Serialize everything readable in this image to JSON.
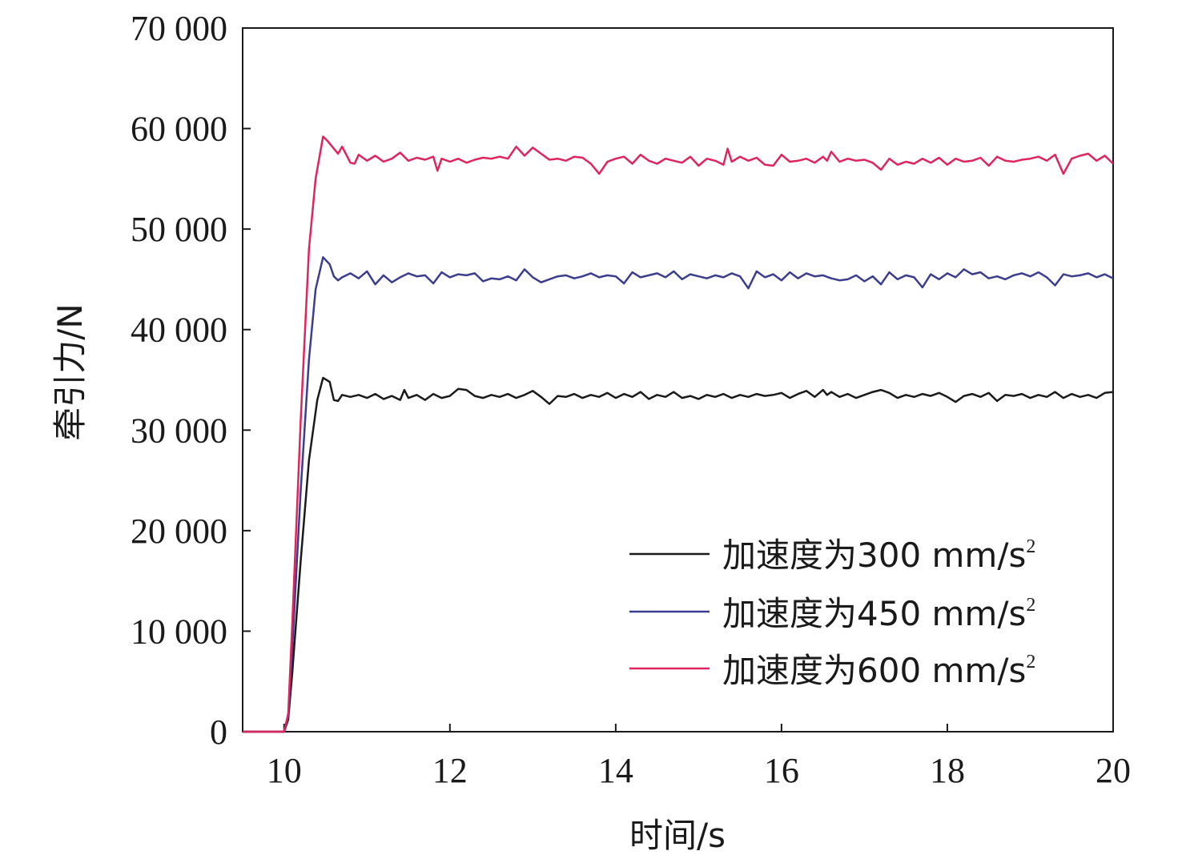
{
  "chart_data": {
    "type": "line",
    "xlabel": "时间/s",
    "ylabel": "牵引力/N",
    "xlim": [
      9.5,
      20
    ],
    "ylim": [
      0,
      70000
    ],
    "xticks": [
      10,
      12,
      14,
      16,
      18,
      20
    ],
    "yticks": [
      0,
      10000,
      20000,
      30000,
      40000,
      50000,
      60000,
      70000
    ],
    "xtick_labels": [
      "10",
      "12",
      "14",
      "16",
      "18",
      "20"
    ],
    "ytick_labels": [
      "0",
      "10 000",
      "20 000",
      "30 000",
      "40 000",
      "50 000",
      "60 000",
      "70 000"
    ],
    "grid": false,
    "legend_position": "bottom-right",
    "series": [
      {
        "name": "加速度为300 mm/s",
        "name_sup": "2",
        "color": "#1a1a1a",
        "x": [
          9.5,
          10.0,
          10.05,
          10.1,
          10.2,
          10.3,
          10.4,
          10.47,
          10.55,
          10.6,
          10.65,
          10.7,
          10.8,
          10.9,
          11.0,
          11.1,
          11.2,
          11.3,
          11.4,
          11.45,
          11.5,
          11.6,
          11.7,
          11.8,
          11.9,
          12.0,
          12.1,
          12.2,
          12.3,
          12.4,
          12.5,
          12.6,
          12.7,
          12.8,
          12.9,
          13.0,
          13.1,
          13.2,
          13.3,
          13.4,
          13.5,
          13.6,
          13.7,
          13.8,
          13.9,
          14.0,
          14.1,
          14.2,
          14.3,
          14.4,
          14.5,
          14.6,
          14.7,
          14.8,
          14.9,
          15.0,
          15.1,
          15.2,
          15.3,
          15.4,
          15.5,
          15.6,
          15.7,
          15.8,
          15.9,
          16.0,
          16.1,
          16.2,
          16.3,
          16.4,
          16.5,
          16.55,
          16.6,
          16.7,
          16.8,
          16.9,
          17.0,
          17.1,
          17.2,
          17.3,
          17.4,
          17.5,
          17.6,
          17.7,
          17.8,
          17.9,
          18.0,
          18.1,
          18.2,
          18.3,
          18.4,
          18.5,
          18.6,
          18.7,
          18.8,
          18.9,
          19.0,
          19.1,
          19.2,
          19.3,
          19.4,
          19.5,
          19.6,
          19.7,
          19.8,
          19.9,
          20.0
        ],
        "y": [
          0,
          0,
          1200,
          6000,
          17000,
          27000,
          33000,
          35200,
          34800,
          33000,
          32900,
          33500,
          33300,
          33500,
          33200,
          33600,
          33100,
          33400,
          33000,
          34000,
          33200,
          33500,
          33000,
          33600,
          33200,
          33400,
          34100,
          34000,
          33400,
          33200,
          33500,
          33300,
          33600,
          33200,
          33500,
          33900,
          33300,
          32600,
          33400,
          33300,
          33600,
          33200,
          33500,
          33300,
          33700,
          33200,
          33600,
          33300,
          33800,
          33100,
          33500,
          33300,
          33800,
          33200,
          33400,
          33100,
          33500,
          33300,
          33600,
          33200,
          33500,
          33300,
          33600,
          33400,
          33500,
          33700,
          33200,
          33600,
          33900,
          33300,
          34000,
          33500,
          33800,
          33300,
          33600,
          33200,
          33500,
          33800,
          34000,
          33700,
          33200,
          33500,
          33300,
          33600,
          33400,
          33700,
          33300,
          32800,
          33400,
          33600,
          33300,
          33700,
          32900,
          33500,
          33400,
          33600,
          33200,
          33500,
          33300,
          33800,
          33200,
          33600,
          33300,
          33500,
          33200,
          33700,
          33800
        ]
      },
      {
        "name": "加速度为450 mm/s",
        "name_sup": "2",
        "color": "#3b3d8f",
        "x": [
          9.5,
          10.0,
          10.05,
          10.1,
          10.2,
          10.3,
          10.38,
          10.47,
          10.55,
          10.6,
          10.65,
          10.7,
          10.8,
          10.9,
          11.0,
          11.1,
          11.2,
          11.3,
          11.4,
          11.5,
          11.6,
          11.7,
          11.8,
          11.9,
          12.0,
          12.1,
          12.2,
          12.3,
          12.4,
          12.5,
          12.6,
          12.7,
          12.8,
          12.9,
          13.0,
          13.1,
          13.2,
          13.3,
          13.4,
          13.5,
          13.6,
          13.7,
          13.8,
          13.9,
          14.0,
          14.1,
          14.2,
          14.3,
          14.4,
          14.5,
          14.6,
          14.7,
          14.8,
          14.9,
          15.0,
          15.1,
          15.2,
          15.3,
          15.4,
          15.5,
          15.6,
          15.7,
          15.8,
          15.9,
          16.0,
          16.1,
          16.2,
          16.3,
          16.4,
          16.5,
          16.6,
          16.7,
          16.8,
          16.9,
          17.0,
          17.1,
          17.2,
          17.3,
          17.4,
          17.5,
          17.6,
          17.7,
          17.8,
          17.9,
          18.0,
          18.1,
          18.2,
          18.3,
          18.4,
          18.5,
          18.6,
          18.7,
          18.8,
          18.9,
          19.0,
          19.1,
          19.2,
          19.3,
          19.4,
          19.5,
          19.6,
          19.7,
          19.8,
          19.9,
          20.0
        ],
        "y": [
          0,
          0,
          1500,
          8500,
          24000,
          37000,
          44000,
          47200,
          46500,
          45300,
          44900,
          45200,
          45600,
          45100,
          45800,
          44500,
          45400,
          44700,
          45200,
          45600,
          45300,
          45400,
          44600,
          45700,
          45200,
          45500,
          45400,
          45600,
          44800,
          45100,
          45000,
          45300,
          44900,
          46000,
          45200,
          44700,
          45000,
          45300,
          45400,
          45100,
          45300,
          45600,
          45200,
          45400,
          45300,
          44600,
          45700,
          45200,
          45400,
          45600,
          45200,
          45800,
          45000,
          45500,
          45300,
          45100,
          45400,
          45200,
          45600,
          45300,
          44100,
          45800,
          45200,
          45500,
          44900,
          45700,
          45100,
          45600,
          45300,
          45400,
          45100,
          44900,
          45000,
          45400,
          44800,
          45300,
          44500,
          45700,
          45000,
          45400,
          45200,
          44200,
          45500,
          45000,
          45600,
          45200,
          46000,
          45500,
          45700,
          45100,
          45300,
          45000,
          45400,
          45600,
          45300,
          45700,
          45200,
          44400,
          45500,
          45300,
          45400,
          45600,
          45200,
          45500,
          45100
        ]
      },
      {
        "name": "加速度为600 mm/s",
        "name_sup": "2",
        "color": "#e0245e",
        "x": [
          9.5,
          10.0,
          10.05,
          10.1,
          10.2,
          10.3,
          10.38,
          10.47,
          10.52,
          10.6,
          10.65,
          10.7,
          10.8,
          10.85,
          10.9,
          11.0,
          11.1,
          11.2,
          11.3,
          11.4,
          11.5,
          11.6,
          11.7,
          11.8,
          11.85,
          11.9,
          12.0,
          12.1,
          12.2,
          12.3,
          12.4,
          12.5,
          12.6,
          12.7,
          12.8,
          12.9,
          13.0,
          13.1,
          13.2,
          13.3,
          13.4,
          13.5,
          13.6,
          13.7,
          13.8,
          13.9,
          14.0,
          14.1,
          14.2,
          14.3,
          14.4,
          14.5,
          14.6,
          14.7,
          14.8,
          14.9,
          15.0,
          15.1,
          15.2,
          15.3,
          15.35,
          15.4,
          15.5,
          15.6,
          15.7,
          15.8,
          15.9,
          16.0,
          16.1,
          16.2,
          16.3,
          16.4,
          16.5,
          16.55,
          16.6,
          16.7,
          16.8,
          16.9,
          17.0,
          17.1,
          17.2,
          17.3,
          17.4,
          17.5,
          17.6,
          17.7,
          17.8,
          17.9,
          18.0,
          18.1,
          18.2,
          18.3,
          18.4,
          18.5,
          18.6,
          18.7,
          18.8,
          18.9,
          19.0,
          19.1,
          19.2,
          19.3,
          19.4,
          19.5,
          19.6,
          19.7,
          19.8,
          19.9,
          20.0
        ],
        "y": [
          0,
          0,
          1800,
          11000,
          31000,
          48000,
          55000,
          59200,
          58800,
          58000,
          57500,
          58200,
          56600,
          56500,
          57400,
          56800,
          57300,
          56700,
          57000,
          57600,
          56800,
          57100,
          56900,
          57200,
          55800,
          57000,
          56700,
          57000,
          56600,
          56900,
          57100,
          57000,
          57200,
          57000,
          58200,
          57300,
          58100,
          57500,
          56900,
          57000,
          56800,
          57200,
          57100,
          56500,
          55500,
          56700,
          57000,
          57200,
          56500,
          57400,
          56800,
          56500,
          57000,
          56800,
          56600,
          57200,
          56300,
          57000,
          56800,
          56400,
          58000,
          56700,
          57200,
          56800,
          57100,
          56400,
          56300,
          57400,
          56700,
          56800,
          57000,
          56600,
          57200,
          56800,
          57700,
          56700,
          57000,
          56800,
          56900,
          56600,
          55900,
          57000,
          56400,
          56700,
          56500,
          57000,
          56600,
          57100,
          56400,
          57000,
          56700,
          56800,
          57100,
          56300,
          57200,
          56800,
          56700,
          56900,
          57000,
          57200,
          56800,
          57400,
          55500,
          57000,
          57300,
          57500,
          56800,
          57300,
          56500
        ]
      }
    ]
  }
}
